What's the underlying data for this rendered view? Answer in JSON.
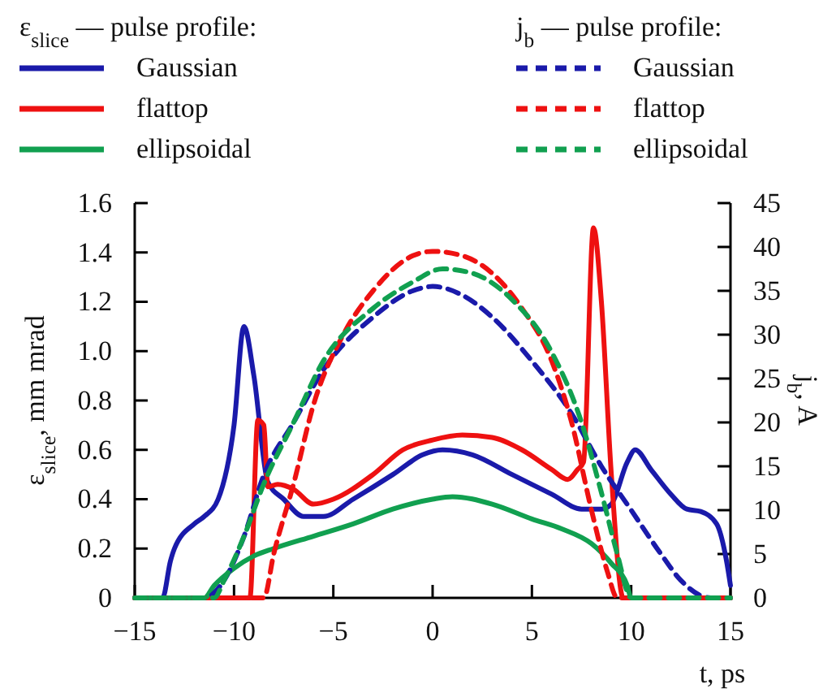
{
  "chart_data": {
    "type": "line",
    "xlabel": "t, ps",
    "ylabel": "ε$_{slice}$, mm mrad",
    "y2label": "j$_{b}$, A",
    "annotations": [
      "ε$_{slice}$ — pulse profile:",
      "j$_{b}$ — pulse profile:"
    ],
    "legend": "top",
    "grid": false,
    "marker": "none",
    "xlim": [
      -15,
      15
    ],
    "xticks": [
      {
        "value": -15,
        "label": "−15"
      },
      {
        "value": -10,
        "label": "−10"
      },
      {
        "value": -5,
        "label": "−5"
      },
      0,
      5,
      10,
      15
    ],
    "ylim": [
      0,
      1.6
    ],
    "yticks": [
      0,
      0.2,
      0.4,
      0.6,
      0.8,
      {
        "value": 1,
        "label": "1.0"
      },
      1.2,
      1.4,
      1.6
    ],
    "y2lim": [
      0,
      45
    ],
    "y2ticks": [
      0,
      5,
      10,
      15,
      20,
      25,
      30,
      35,
      40,
      45
    ],
    "series": [
      {
        "name": "Gaussian",
        "color": "#1a1aaa",
        "line_style": "solid",
        "x": [
          -15,
          -13.6,
          -13.2,
          -13,
          -12,
          -11.5,
          -10.8,
          -10,
          -9.5,
          -9,
          -8.3,
          -7.5,
          -6.5,
          -5.5,
          -4,
          -2,
          -0.5,
          0.5,
          2,
          4,
          6,
          7.5,
          8.5,
          9,
          9.8,
          10.2,
          11,
          12,
          12.8,
          13.5,
          14.3,
          14.8,
          15
        ],
        "values": [
          0,
          0,
          0.15,
          0.2,
          0.3,
          0.33,
          0.4,
          0.7,
          1.1,
          0.9,
          0.47,
          0.4,
          0.33,
          0.33,
          0.4,
          0.5,
          0.58,
          0.6,
          0.58,
          0.5,
          0.42,
          0.36,
          0.36,
          0.38,
          0.55,
          0.6,
          0.52,
          0.42,
          0.36,
          0.35,
          0.3,
          0.15,
          0.05
        ]
      },
      {
        "name": "flattop",
        "color": "#ee1111",
        "line_style": "solid",
        "x": [
          -15,
          -9.2,
          -8.8,
          -8.5,
          -8.3,
          -7.8,
          -7,
          -6,
          -5,
          -3,
          -1.5,
          0,
          1.5,
          3,
          4.5,
          6,
          6.8,
          7.3,
          7.6,
          8.1,
          8.5,
          9,
          9.6,
          15
        ],
        "values": [
          0,
          0,
          0.72,
          0.7,
          0.45,
          0.46,
          0.44,
          0.38,
          0.4,
          0.5,
          0.6,
          0.64,
          0.66,
          0.65,
          0.6,
          0.52,
          0.48,
          0.52,
          0.55,
          1.5,
          1.2,
          0.5,
          0,
          0
        ]
      },
      {
        "name": "ellipsoidal",
        "color": "#11a050",
        "line_style": "solid",
        "x": [
          -15,
          -11.5,
          -11,
          -10,
          -9,
          -8,
          -6,
          -4,
          -2,
          0,
          1,
          3,
          5,
          6.5,
          8,
          9,
          9.8,
          10,
          15
        ],
        "values": [
          0,
          0,
          0.05,
          0.12,
          0.17,
          0.2,
          0.25,
          0.3,
          0.36,
          0.4,
          0.41,
          0.38,
          0.32,
          0.28,
          0.22,
          0.14,
          0.05,
          0,
          0
        ]
      },
      {
        "name": "Gaussian",
        "color": "#1a1aaa",
        "line_style": "dashed",
        "axis": "y2",
        "x": [
          -15,
          -11.5,
          -10.5,
          -9.5,
          -8.5,
          -7,
          -5.5,
          -3,
          -1,
          0,
          1.5,
          3,
          5,
          7,
          8.5,
          10,
          11.5,
          12.5,
          14,
          15
        ],
        "values": [
          0,
          0,
          2,
          7,
          14,
          20,
          26,
          32,
          35,
          35.5,
          34.5,
          32,
          27,
          21,
          15,
          10,
          5,
          2,
          0,
          0
        ]
      },
      {
        "name": "flattop",
        "color": "#ee1111",
        "line_style": "dashed",
        "axis": "y2",
        "x": [
          -15,
          -8.5,
          -8,
          -7,
          -6,
          -4.5,
          -3,
          -1,
          0,
          1.5,
          3,
          4.5,
          6,
          7,
          8,
          8.8,
          9.3,
          15
        ],
        "values": [
          0,
          0,
          5,
          13,
          22,
          30,
          35,
          39,
          39.5,
          39,
          37,
          33,
          27,
          20,
          10,
          3,
          0,
          0
        ]
      },
      {
        "name": "ellipsoidal",
        "color": "#11a050",
        "line_style": "dashed",
        "axis": "y2",
        "x": [
          -15,
          -11,
          -10.5,
          -9.5,
          -8.5,
          -7,
          -5.5,
          -3,
          -1,
          0.5,
          2,
          4,
          6,
          7.5,
          8.5,
          9.3,
          10,
          15
        ],
        "values": [
          0,
          0,
          2,
          7,
          13,
          20,
          27,
          33,
          36,
          37.5,
          37,
          34,
          28,
          20,
          12,
          5,
          0,
          0
        ]
      }
    ]
  }
}
